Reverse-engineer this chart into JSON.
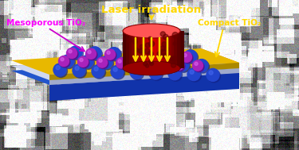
{
  "title_text": "Laser irradiation",
  "title_color": "#FFD700",
  "label_meso": "Mesoporous TiO₂",
  "label_compact": "Compact TiO₂",
  "label_color_meso": "#FF00FF",
  "label_color_compact": "#FFD700",
  "sphere_blue": "#2244CC",
  "sphere_blue_dark": "#112288",
  "sphere_blue_highlight": "#4466EE",
  "sphere_purple": "#AA22BB",
  "sphere_purple_dark": "#660077",
  "sphere_purple_highlight": "#DD66EE",
  "cylinder_mid": "#CC1111",
  "cylinder_dark": "#881111",
  "cylinder_light": "#EE3333",
  "cylinder_top": "#FF4444",
  "arrow_color": "#FFD700",
  "layer_gold_top": "#E8B800",
  "layer_gold_side": "#AA8800",
  "layer_white_top": "#D0D8F0",
  "layer_white_side": "#A0AACC",
  "layer_blue_top": "#2255CC",
  "layer_blue_side": "#112299",
  "layer_blue_front": "#1133AA",
  "bg_base": 85
}
